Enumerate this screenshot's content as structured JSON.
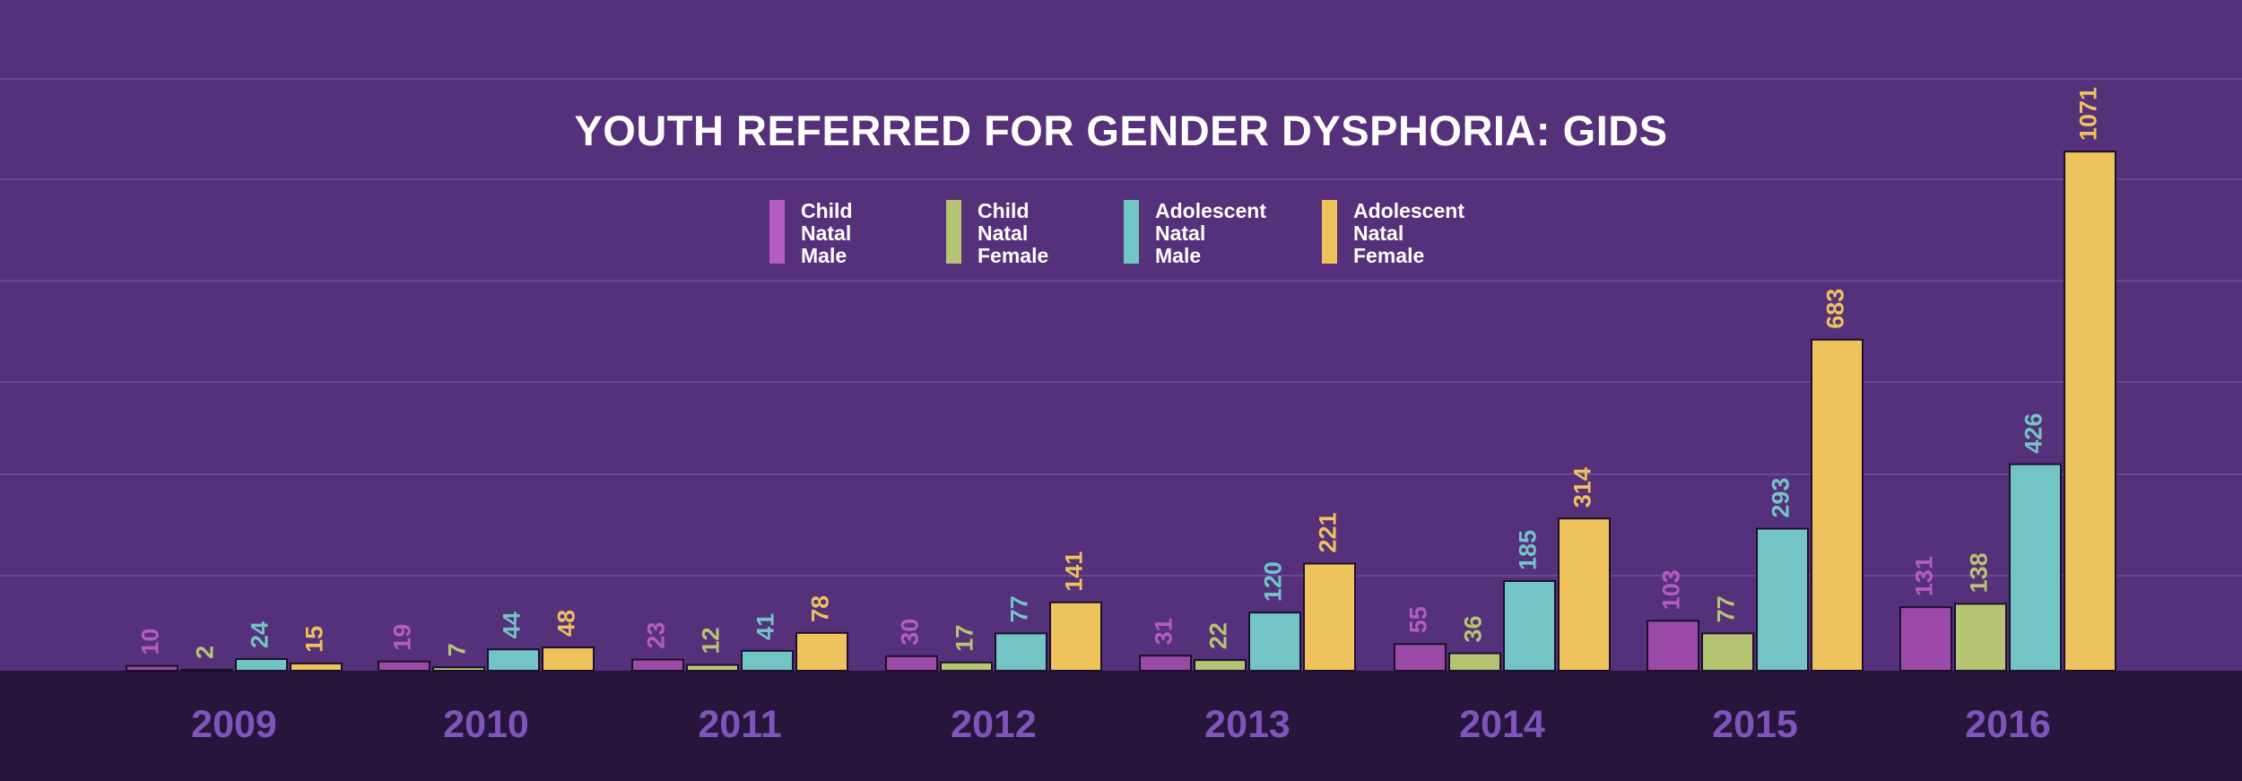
{
  "chart_data": {
    "type": "bar",
    "title": "YOUTH REFERRED FOR GENDER DYSPHORIA: GIDS",
    "categories": [
      "2009",
      "2010",
      "2011",
      "2012",
      "2013",
      "2014",
      "2015",
      "2016"
    ],
    "series": [
      {
        "name": "Child Natal Male",
        "color": "#9b4aa8",
        "label_color": "#b45cc2",
        "values": [
          10,
          19,
          23,
          30,
          31,
          55,
          103,
          131
        ]
      },
      {
        "name": "Child Natal Female",
        "color": "#b5c573",
        "label_color": "#b5c573",
        "values": [
          2,
          7,
          12,
          17,
          22,
          36,
          77,
          138
        ]
      },
      {
        "name": "Adolescent Natal Male",
        "color": "#73c5c5",
        "label_color": "#73c5c5",
        "values": [
          24,
          44,
          41,
          77,
          120,
          185,
          293,
          426
        ]
      },
      {
        "name": "Adolescent Natal Female",
        "color": "#eec25c",
        "label_color": "#eec25c",
        "values": [
          15,
          48,
          78,
          141,
          221,
          314,
          683,
          1071
        ]
      }
    ],
    "xlabel": "",
    "ylabel": "",
    "ylim": [
      0,
      1100
    ],
    "grid": true,
    "legend": "top-center"
  },
  "colors": {
    "background": "#55317b",
    "axis_band": "#26163b",
    "category_label": "#7d55bb",
    "gridline": "#6a4891",
    "bar_outline": "#1c1029"
  }
}
